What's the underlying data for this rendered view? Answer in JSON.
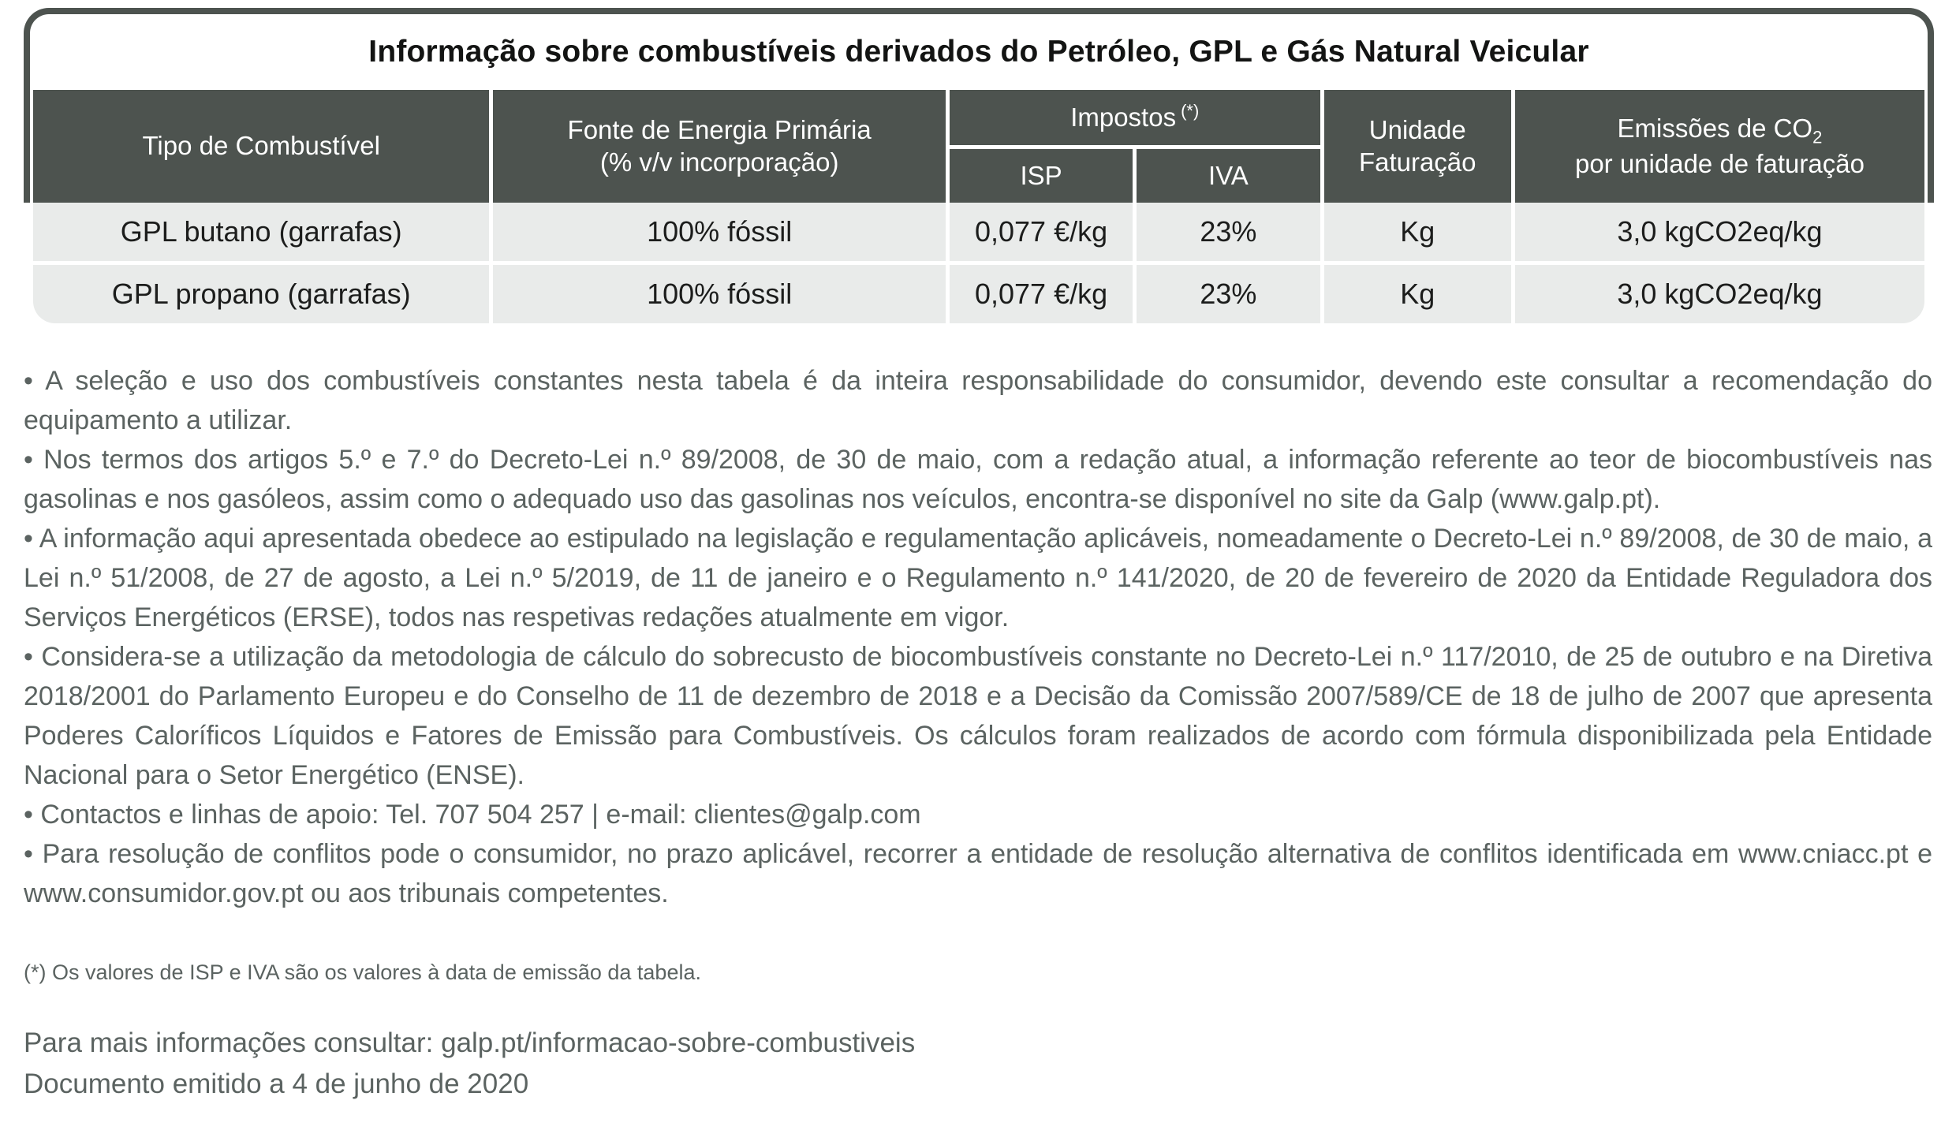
{
  "table": {
    "title": "Informação sobre combustíveis derivados do Petróleo, GPL e Gás Natural Veicular",
    "headers": {
      "fuel_type": "Tipo de Combustível",
      "energy_source_l1": "Fonte de Energia Primária",
      "energy_source_l2": "(% v/v incorporação)",
      "taxes": "Impostos",
      "taxes_marker": "(*)",
      "isp": "ISP",
      "iva": "IVA",
      "billing_unit_l1": "Unidade",
      "billing_unit_l2": "Faturação",
      "emissions_l1": "Emissões de CO",
      "emissions_sub": "2",
      "emissions_l2": "por unidade de faturação"
    },
    "rows": [
      {
        "fuel": "GPL butano (garrafas)",
        "source": "100% fóssil",
        "isp": "0,077 €/kg",
        "iva": "23%",
        "unit": "Kg",
        "emissions": "3,0 kgCO2eq/kg"
      },
      {
        "fuel": "GPL propano (garrafas)",
        "source": "100% fóssil",
        "isp": "0,077 €/kg",
        "iva": "23%",
        "unit": "Kg",
        "emissions": "3,0 kgCO2eq/kg"
      }
    ]
  },
  "notes": [
    "• A seleção e uso dos combustíveis constantes nesta tabela é da inteira responsabilidade do consumidor, devendo este consultar a recomendação do equipamento a utilizar.",
    "• Nos termos dos artigos 5.º e 7.º do Decreto-Lei n.º 89/2008, de 30 de maio, com a redação atual, a informação referente ao teor de biocombustíveis nas gasolinas e nos gasóleos, assim como o adequado uso das gasolinas nos veículos, encontra-se disponível no site da Galp (www.galp.pt).",
    "• A informação aqui apresentada obedece ao estipulado na legislação e regulamentação aplicáveis, nomeadamente o Decreto-Lei n.º 89/2008, de 30 de maio, a Lei n.º 51/2008, de 27 de agosto, a Lei n.º 5/2019, de 11 de janeiro e o Regulamento n.º 141/2020, de 20 de fevereiro de 2020 da Entidade Reguladora dos Serviços Energéticos (ERSE), todos nas respetivas redações atualmente em vigor.",
    "• Considera-se a utilização da metodologia de cálculo do sobrecusto de biocombustíveis constante no Decreto-Lei n.º 117/2010, de 25 de outubro e na Diretiva 2018/2001 do Parlamento Europeu e do Conselho de 11 de dezembro de 2018 e a Decisão da Comissão 2007/589/CE de 18 de julho de 2007 que apresenta Poderes Caloríficos Líquidos e Fatores de Emissão para Combustíveis. Os cálculos foram realizados de acordo com fórmula disponibilizada pela Entidade Nacional para o Setor Energético (ENSE).",
    "• Contactos e linhas de apoio: Tel. 707 504 257 | e-mail: clientes@galp.com",
    "• Para resolução de conflitos pode o consumidor, no prazo aplicável, recorrer a entidade de resolução alternativa de conflitos identificada em www.cniacc.pt e www.consumidor.gov.pt ou aos tribunais competentes."
  ],
  "footnote": "(*) Os valores de ISP e IVA são os valores à data de emissão da tabela.",
  "footer": {
    "more_info": "Para mais informações consultar: galp.pt/informacao-sobre-combustiveis",
    "issued": "Documento emitido a 4 de junho de 2020"
  },
  "colors": {
    "header_bg": "#4d534f",
    "row_bg": "#e9ebea",
    "notes_text": "#5b6361",
    "data_text": "#1c1d1c"
  }
}
